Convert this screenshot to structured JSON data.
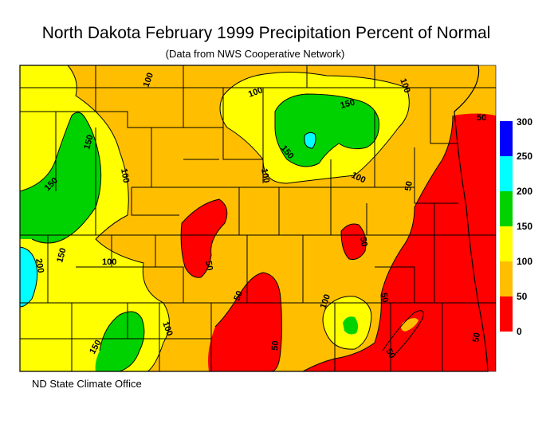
{
  "title": "North Dakota February 1999 Precipitation Percent of Normal",
  "subtitle": "(Data from NWS Cooperative Network)",
  "credit": "ND State Climate Office",
  "legend": {
    "bins": [
      {
        "min": 0,
        "max": 50,
        "color": "#ff0000"
      },
      {
        "min": 50,
        "max": 100,
        "color": "#ffbf00"
      },
      {
        "min": 100,
        "max": 150,
        "color": "#ffff00"
      },
      {
        "min": 150,
        "max": 200,
        "color": "#00d200"
      },
      {
        "min": 200,
        "max": 250,
        "color": "#00ffff"
      },
      {
        "min": 250,
        "max": 300,
        "color": "#0000ff"
      }
    ],
    "labels": [
      "300",
      "250",
      "200",
      "150",
      "100",
      "50",
      "0"
    ]
  },
  "contour_labels": [
    "100",
    "100",
    "150",
    "100",
    "50",
    "150",
    "150",
    "100",
    "150",
    "100",
    "50",
    "150",
    "200",
    "100",
    "100",
    "50",
    "50",
    "50",
    "100",
    "50",
    "50",
    "150",
    "100",
    "50",
    "50"
  ]
}
